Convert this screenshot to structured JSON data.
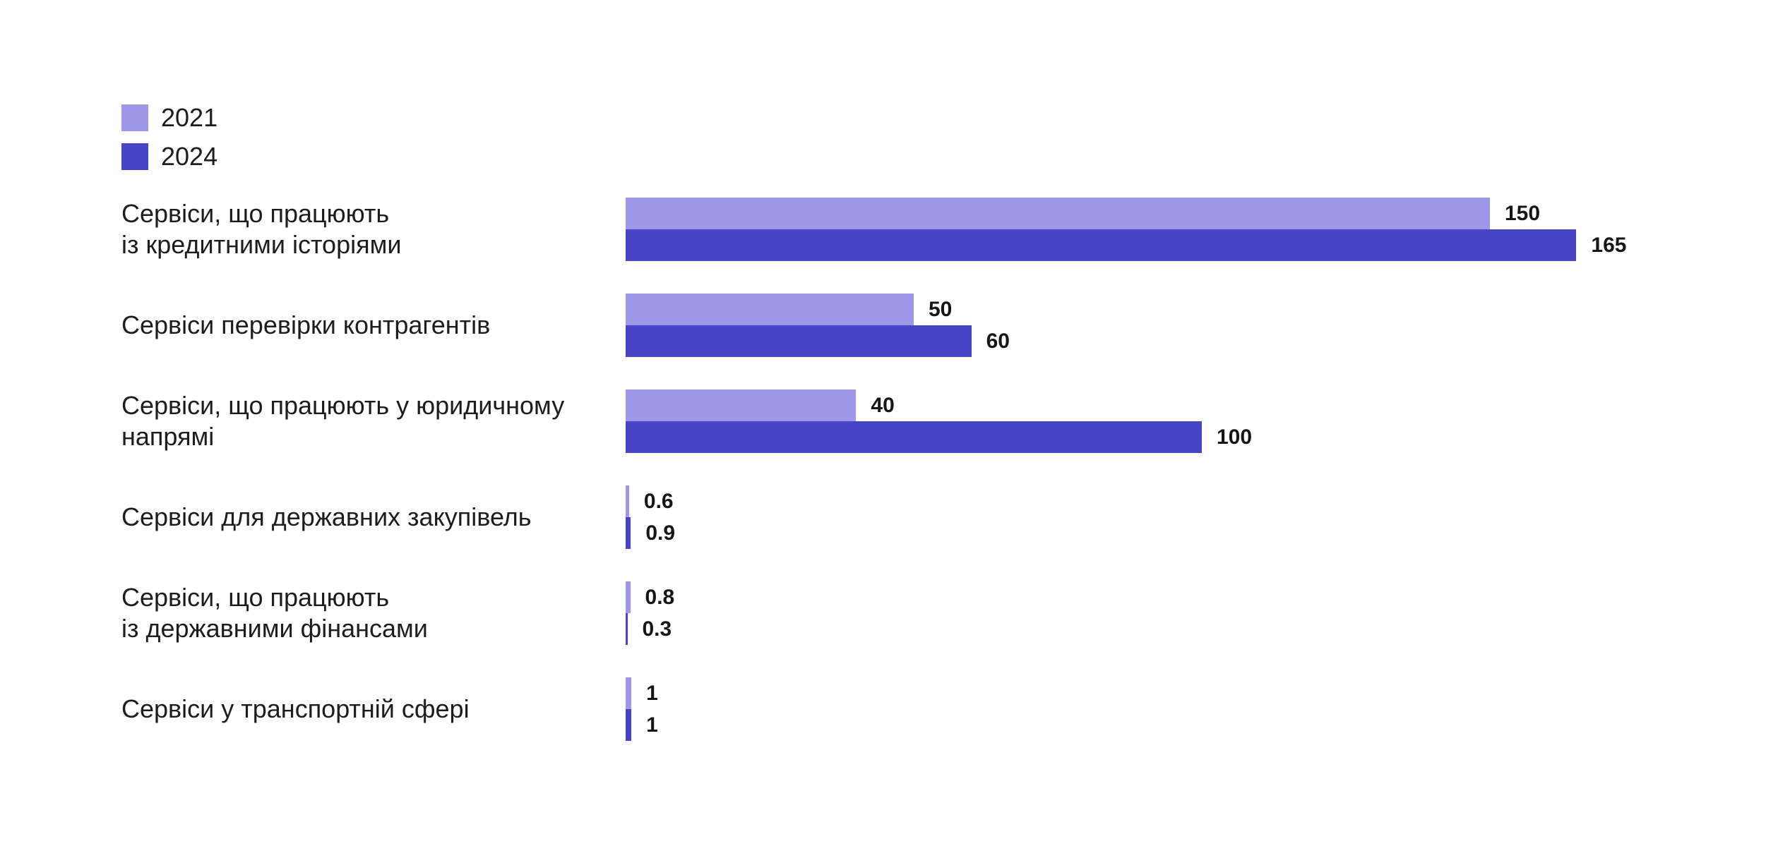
{
  "page": {
    "background": "#ffffff",
    "text_color": "#1d1d1d"
  },
  "legend": {
    "items": [
      {
        "label": "2021",
        "color": "#9e97e8"
      },
      {
        "label": "2024",
        "color": "#4744c6"
      }
    ]
  },
  "chart_data": {
    "type": "bar",
    "orientation": "horizontal",
    "title": "",
    "xlabel": "",
    "ylabel": "",
    "grid": false,
    "legend_position": "top-left",
    "data_labels": true,
    "xlim": [
      0,
      165
    ],
    "categories": [
      "Сервіси, що працюють із кредитними історіями",
      "Сервіси перевірки контрагентів",
      "Сервіси, що працюють у юридичному напрямі",
      "Сервіси для державних закупівель",
      "Сервіси, що працюють із державними фінансами",
      "Сервіси у транспортній сфері"
    ],
    "category_lines": [
      [
        "Сервіси, що працюють",
        "із кредитними історіями"
      ],
      [
        "Сервіси перевірки контрагентів"
      ],
      [
        "Сервіси, що працюють у юридичному",
        "напрямі"
      ],
      [
        "Сервіси для державних закупівель"
      ],
      [
        "Сервіси, що працюють",
        "із державними фінансами"
      ],
      [
        "Сервіси у транспортній сфері"
      ]
    ],
    "series": [
      {
        "name": "2021",
        "color": "#9e97e8",
        "values": [
          150,
          50,
          40,
          0.6,
          0.8,
          1
        ]
      },
      {
        "name": "2024",
        "color": "#4744c6",
        "values": [
          165,
          60,
          100,
          0.9,
          0.3,
          1
        ]
      }
    ],
    "value_labels": [
      [
        "150",
        "165"
      ],
      [
        "50",
        "60"
      ],
      [
        "40",
        "100"
      ],
      [
        "0.6",
        "0.9"
      ],
      [
        "0.8",
        "0.3"
      ],
      [
        "1",
        "1"
      ]
    ]
  }
}
